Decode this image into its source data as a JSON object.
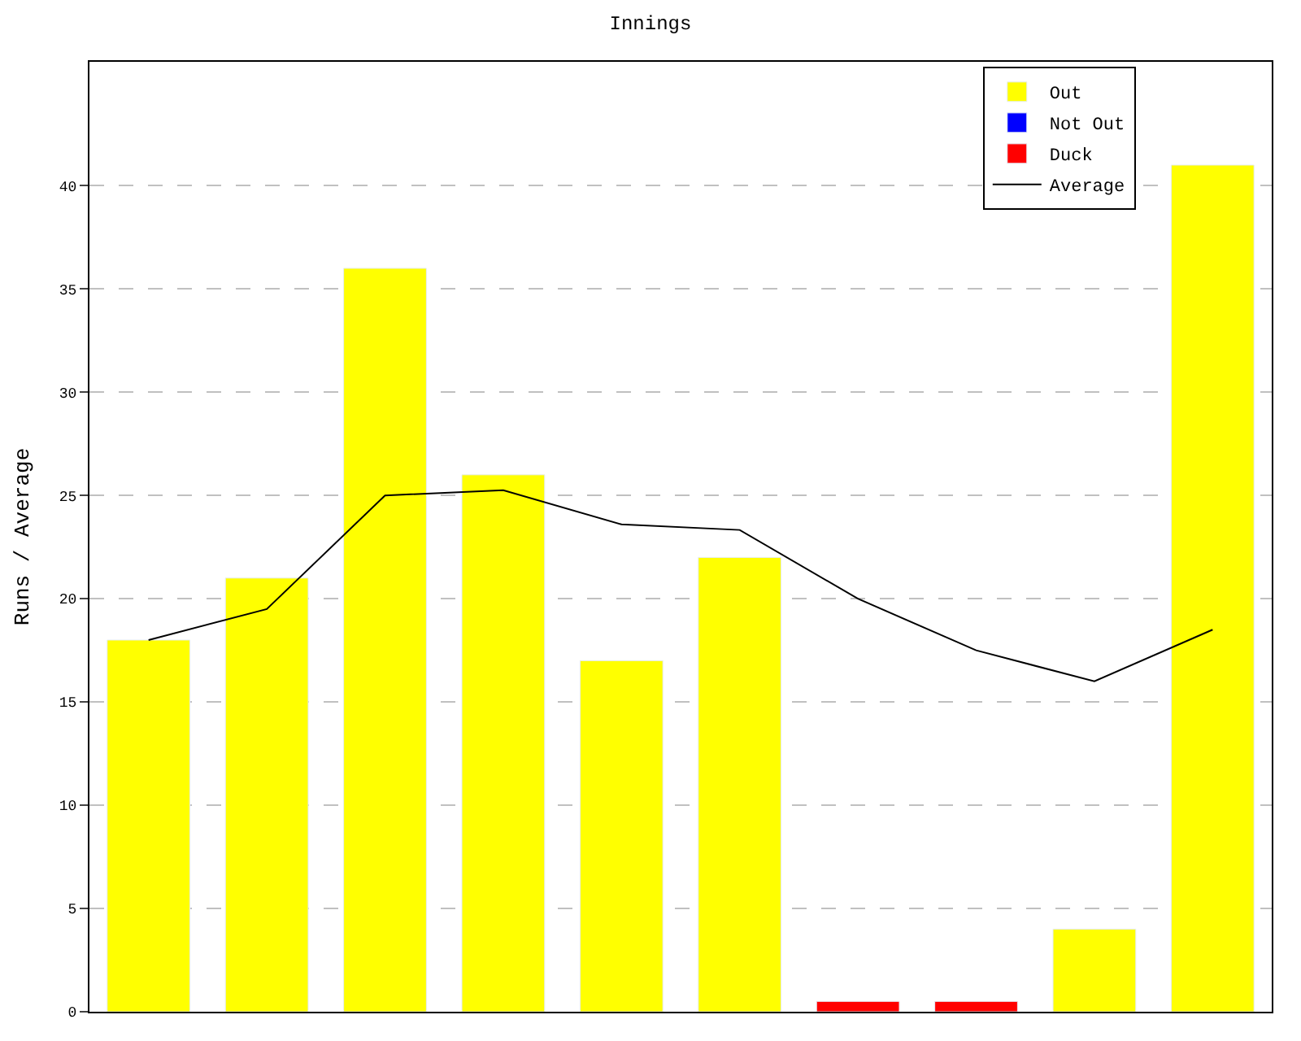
{
  "chart_data": {
    "type": "bar",
    "title": "Innings",
    "ylabel": "Runs / Average",
    "categories": [
      null,
      null,
      null,
      null,
      null,
      null,
      null,
      null,
      null,
      null
    ],
    "series": [
      {
        "name": "Average",
        "type": "line",
        "color": "#000000",
        "values": [
          18,
          19.5,
          25,
          25.25,
          23.6,
          23.33,
          20,
          17.5,
          16,
          18.5
        ]
      },
      {
        "name": "Out",
        "color": "#ffff00",
        "values": [
          18,
          21,
          36,
          26,
          17,
          22,
          null,
          null,
          4,
          41
        ]
      },
      {
        "name": "Not Out",
        "color": "#0000ff",
        "values": [
          null,
          null,
          null,
          null,
          null,
          null,
          null,
          null,
          null,
          null
        ]
      },
      {
        "name": "Duck",
        "color": "#ff0000",
        "values": [
          null,
          null,
          null,
          null,
          null,
          null,
          0.5,
          0.5,
          null,
          null
        ]
      }
    ],
    "ylim": [
      0,
      46
    ],
    "yticks": [
      0,
      5,
      10,
      15,
      20,
      25,
      30,
      35,
      40
    ],
    "grid": "y",
    "legend": "top right",
    "tick_labels": "y",
    "marker": "none"
  }
}
